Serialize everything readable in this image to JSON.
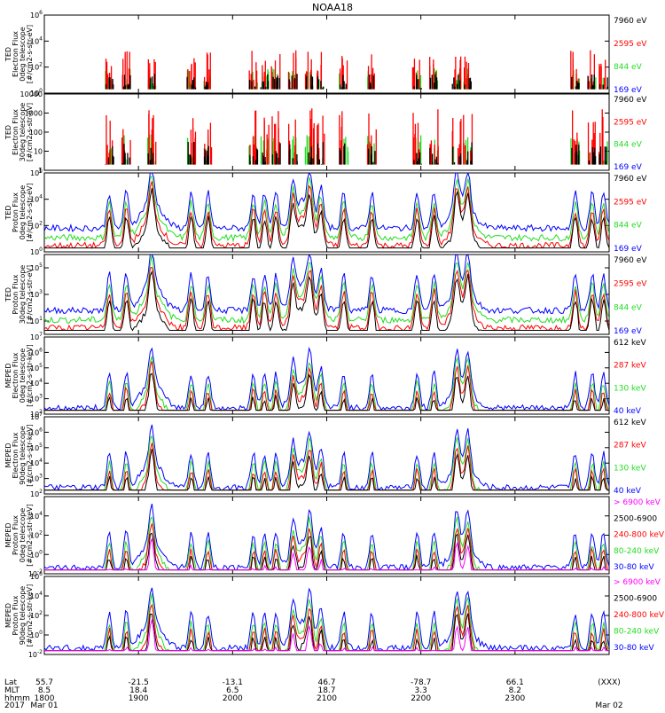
{
  "title": "NOAA18",
  "colors": {
    "black": "#000000",
    "red": "#ff0000",
    "green": "#22dd22",
    "blue": "#0000ff",
    "magenta": "#ff00ff"
  },
  "footer": {
    "row_labels": [
      "Lat",
      "MLT",
      "hhmm",
      "2017"
    ],
    "columns": [
      {
        "lat": "55.7",
        "mlt": "8.5",
        "hhmm": "1800",
        "date": "Mar 01"
      },
      {
        "lat": "-21.5",
        "mlt": "18.4",
        "hhmm": "1900",
        "date": ""
      },
      {
        "lat": "-13.1",
        "mlt": "6.5",
        "hhmm": "2000",
        "date": ""
      },
      {
        "lat": "46.7",
        "mlt": "18.7",
        "hhmm": "2100",
        "date": ""
      },
      {
        "lat": "-78.7",
        "mlt": "3.3",
        "hhmm": "2200",
        "date": ""
      },
      {
        "lat": "66.1",
        "mlt": "8.2",
        "hhmm": "2300",
        "date": ""
      },
      {
        "lat": "(XXX)",
        "mlt": "",
        "hhmm": "",
        "date": "Mar 02"
      }
    ]
  },
  "chart_data": [
    {
      "type": "line",
      "ylabel": [
        "TED",
        "Electron Flux",
        "0deg telescope",
        "[#/cm2-s-str-eV]"
      ],
      "ticks": [
        {
          "label": "10^0",
          "exp": 0
        },
        {
          "label": "10^2",
          "exp": 2
        },
        {
          "label": "10^4",
          "exp": 4
        },
        {
          "label": "10^6",
          "exp": 6
        }
      ],
      "ylim_exp": [
        0,
        6
      ],
      "log": true,
      "legend": [
        {
          "label": "7960 eV",
          "color": "black"
        },
        {
          "label": "2595 eV",
          "color": "red"
        },
        {
          "label": "844 eV",
          "color": "green"
        },
        {
          "label": "169 eV",
          "color": "blue"
        }
      ]
    },
    {
      "type": "line",
      "ylabel": [
        "TED",
        "Electron Flux",
        "30deg telescope",
        "[#/cm2-s-str-eV]"
      ],
      "ticks": [
        {
          "label": "1",
          "exp": 0
        },
        {
          "label": "10",
          "exp": 1
        },
        {
          "label": "100",
          "exp": 2
        },
        {
          "label": "1000",
          "exp": 3
        },
        {
          "label": "10000",
          "exp": 4
        }
      ],
      "ylim_exp": [
        0,
        4
      ],
      "log": true,
      "legend": [
        {
          "label": "7960 eV",
          "color": "black"
        },
        {
          "label": "2595 eV",
          "color": "red"
        },
        {
          "label": "844 eV",
          "color": "green"
        },
        {
          "label": "169 eV",
          "color": "blue"
        }
      ]
    },
    {
      "type": "line",
      "ylabel": [
        "TED",
        "Proton Flux",
        "0deg telescope",
        "[#/cm2-s-str-eV]"
      ],
      "ticks": [
        {
          "label": "10^0",
          "exp": 0
        },
        {
          "label": "10^2",
          "exp": 2
        },
        {
          "label": "10^4",
          "exp": 4
        },
        {
          "label": "10^6",
          "exp": 6
        }
      ],
      "ylim_exp": [
        0,
        6
      ],
      "log": true,
      "legend": [
        {
          "label": "7960 eV",
          "color": "black"
        },
        {
          "label": "2595 eV",
          "color": "red"
        },
        {
          "label": "844 eV",
          "color": "green"
        },
        {
          "label": "169 eV",
          "color": "blue"
        }
      ]
    },
    {
      "type": "line",
      "ylabel": [
        "TED",
        "Proton Flux",
        "30deg telescope",
        "[#/cm2-s-str-eV]"
      ],
      "ticks": [
        {
          "label": "10^1",
          "exp": 1
        },
        {
          "label": "10^3",
          "exp": 3
        },
        {
          "label": "10^5",
          "exp": 5
        }
      ],
      "ylim_exp": [
        0,
        6
      ],
      "log": true,
      "legend": [
        {
          "label": "7960 eV",
          "color": "black"
        },
        {
          "label": "2595 eV",
          "color": "red"
        },
        {
          "label": "844 eV",
          "color": "green"
        },
        {
          "label": "169 eV",
          "color": "blue"
        }
      ]
    },
    {
      "type": "line",
      "ylabel": [
        "MEPED",
        "Electron Flux",
        "0deg telescope",
        "[#/cm2-s-str-keV]"
      ],
      "ticks": [
        {
          "label": "10^2",
          "exp": 2
        },
        {
          "label": "10^3",
          "exp": 3
        },
        {
          "label": "10^4",
          "exp": 4
        },
        {
          "label": "10^5",
          "exp": 5
        },
        {
          "label": "10^6",
          "exp": 6
        },
        {
          "label": "10^7",
          "exp": 7
        }
      ],
      "ylim_exp": [
        2,
        7
      ],
      "log": true,
      "legend": [
        {
          "label": "612 keV",
          "color": "black"
        },
        {
          "label": "287 keV",
          "color": "red"
        },
        {
          "label": "130 keV",
          "color": "green"
        },
        {
          "label": "40 keV",
          "color": "blue"
        }
      ]
    },
    {
      "type": "line",
      "ylabel": [
        "MEPED",
        "Electron Flux",
        "90deg telescope",
        "[#/cm2-s-str-keV]"
      ],
      "ticks": [
        {
          "label": "10^2",
          "exp": 2
        },
        {
          "label": "10^3",
          "exp": 3
        },
        {
          "label": "10^4",
          "exp": 4
        },
        {
          "label": "10^5",
          "exp": 5
        },
        {
          "label": "10^6",
          "exp": 6
        },
        {
          "label": "10^7",
          "exp": 7
        }
      ],
      "ylim_exp": [
        2,
        7
      ],
      "log": true,
      "legend": [
        {
          "label": "612 keV",
          "color": "black"
        },
        {
          "label": "287 keV",
          "color": "red"
        },
        {
          "label": "130 keV",
          "color": "green"
        },
        {
          "label": "40 keV",
          "color": "blue"
        }
      ]
    },
    {
      "type": "line",
      "ylabel": [
        "MEPED",
        "Proton Flux",
        "0deg telescope",
        "[#/cm2-s-str-keV]"
      ],
      "ticks": [
        {
          "label": "10^-2",
          "exp": -2
        },
        {
          "label": "10^0",
          "exp": 0
        },
        {
          "label": "10^2",
          "exp": 2
        },
        {
          "label": "10^4",
          "exp": 4
        }
      ],
      "ylim_exp": [
        -2,
        6
      ],
      "log": true,
      "legend": [
        {
          "label": "> 6900 keV",
          "color": "magenta"
        },
        {
          "label": "2500-6900",
          "color": "black"
        },
        {
          "label": "240-800 keV",
          "color": "red"
        },
        {
          "label": "80-240 keV",
          "color": "green"
        },
        {
          "label": "30-80 keV",
          "color": "blue"
        }
      ]
    },
    {
      "type": "line",
      "ylabel": [
        "MEPED",
        "Proton Flux",
        "90deg telescope",
        "[#/cm2-s-str-keV]"
      ],
      "ticks": [
        {
          "label": "10^-2",
          "exp": -2
        },
        {
          "label": "10^0",
          "exp": 0
        },
        {
          "label": "10^2",
          "exp": 2
        },
        {
          "label": "10^4",
          "exp": 4
        },
        {
          "label": "10^6",
          "exp": 6
        }
      ],
      "ylim_exp": [
        -2,
        6
      ],
      "log": true,
      "legend": [
        {
          "label": "> 6900 keV",
          "color": "magenta"
        },
        {
          "label": "2500-6900",
          "color": "black"
        },
        {
          "label": "240-800 keV",
          "color": "red"
        },
        {
          "label": "80-240 keV",
          "color": "green"
        },
        {
          "label": "30-80 keV",
          "color": "blue"
        }
      ]
    }
  ]
}
